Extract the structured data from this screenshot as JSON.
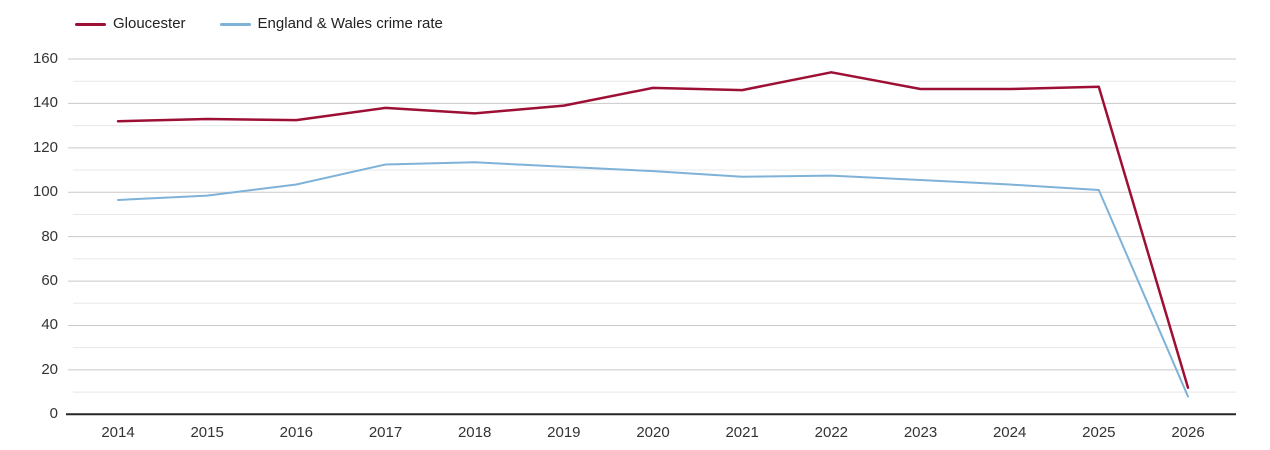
{
  "chart_data": {
    "type": "line",
    "x": [
      2014,
      2015,
      2016,
      2017,
      2018,
      2019,
      2020,
      2021,
      2022,
      2023,
      2024,
      2025,
      2026
    ],
    "series": [
      {
        "name": "Gloucester",
        "color": "#9d0f34",
        "line_width": 2.5,
        "values": [
          132,
          133,
          132.5,
          138,
          135.5,
          139,
          147,
          146,
          154,
          146.5,
          146.5,
          147.5,
          12
        ]
      },
      {
        "name": "England & Wales crime rate",
        "color": "#7fb2d9",
        "line_width": 2,
        "values": [
          96.5,
          98.5,
          103.5,
          112.5,
          113.5,
          111.5,
          109.5,
          107,
          107.5,
          105.5,
          103.5,
          101,
          8
        ]
      }
    ],
    "title": "",
    "xlabel": "",
    "ylabel": "",
    "ylim": [
      0,
      160
    ],
    "yticks": [
      0,
      20,
      40,
      60,
      80,
      100,
      120,
      140,
      160
    ],
    "minor_grid_step": 10,
    "grid": true,
    "legend_position": "top-left",
    "axis_color": "#262626",
    "major_grid_color": "#c9c9c9",
    "minor_grid_color": "#e8e8e8",
    "tick_label_color": "#333333"
  }
}
